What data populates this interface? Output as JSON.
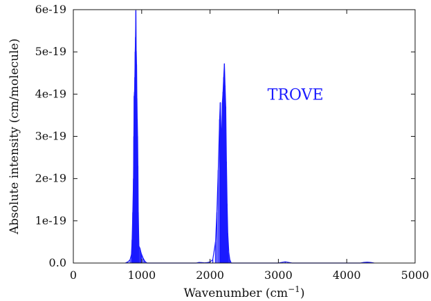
{
  "chart_data": {
    "type": "line",
    "title": "",
    "xlabel": "Wavenumber (cm",
    "xlabel_superscript": "−1",
    "xlabel_suffix": ")",
    "ylabel": "Absolute intensity (cm/molecule)",
    "xlim": [
      0,
      5000
    ],
    "ylim": [
      0,
      6e-19
    ],
    "x_ticks": [
      0,
      1000,
      2000,
      3000,
      4000,
      5000
    ],
    "x_tick_labels": [
      "0",
      "1000",
      "2000",
      "3000",
      "4000",
      "5000"
    ],
    "y_ticks": [
      0,
      1e-19,
      2e-19,
      3e-19,
      4e-19,
      5e-19,
      6e-19
    ],
    "y_tick_labels": [
      "0.0",
      "1e-19",
      "2e-19",
      "3e-19",
      "4e-19",
      "5e-19",
      "6e-19"
    ],
    "grid": false,
    "annotation": {
      "text": "TROVE",
      "x": 3250,
      "y": 4e-19
    },
    "series": [
      {
        "name": "",
        "color": "#1a1aff",
        "x": [
          760,
          800,
          830,
          850,
          860,
          870,
          880,
          885,
          890,
          895,
          900,
          905,
          910,
          915,
          920,
          925,
          930,
          935,
          940,
          945,
          950,
          960,
          975,
          990,
          1000,
          1020,
          1040,
          1060,
          1080,
          1800,
          1840,
          1880,
          1920,
          1960,
          2000,
          2040,
          2080,
          2100,
          2120,
          2140,
          2150,
          2160,
          2170,
          2180,
          2190,
          2200,
          2210,
          2220,
          2230,
          2240,
          2250,
          2260,
          2275,
          2290,
          2310,
          3000,
          3050,
          3100,
          3150,
          3200,
          4200,
          4250,
          4300,
          4350,
          4400
        ],
        "y": [
          0.0,
          3e-21,
          8e-21,
          2e-20,
          5.5e-20,
          1.2e-19,
          2e-19,
          3e-19,
          3.95e-19,
          4.05e-19,
          4.4e-19,
          5e-19,
          5.35e-19,
          5.98e-19,
          5.02e-19,
          4.7e-19,
          3.9e-19,
          3.4e-19,
          3e-19,
          2.3e-19,
          1.2e-19,
          4e-20,
          3.5e-20,
          2.5e-20,
          2e-20,
          1.2e-20,
          6e-21,
          2e-21,
          0.0,
          0.0,
          1.5e-21,
          1e-21,
          5e-22,
          1e-21,
          3e-21,
          8e-21,
          5e-20,
          1.2e-19,
          2.2e-19,
          3.4e-19,
          3.8e-19,
          3.2e-19,
          2.95e-19,
          3.8e-19,
          4.05e-19,
          4.4e-19,
          4.72e-19,
          4.2e-19,
          3.7e-19,
          2.4e-19,
          1.4e-19,
          7e-20,
          2.5e-20,
          8e-21,
          0.0,
          0.0,
          1.5e-21,
          3e-21,
          1.5e-21,
          0.0,
          0.0,
          1.5e-21,
          2e-21,
          1.5e-21,
          0.0
        ]
      }
    ]
  }
}
